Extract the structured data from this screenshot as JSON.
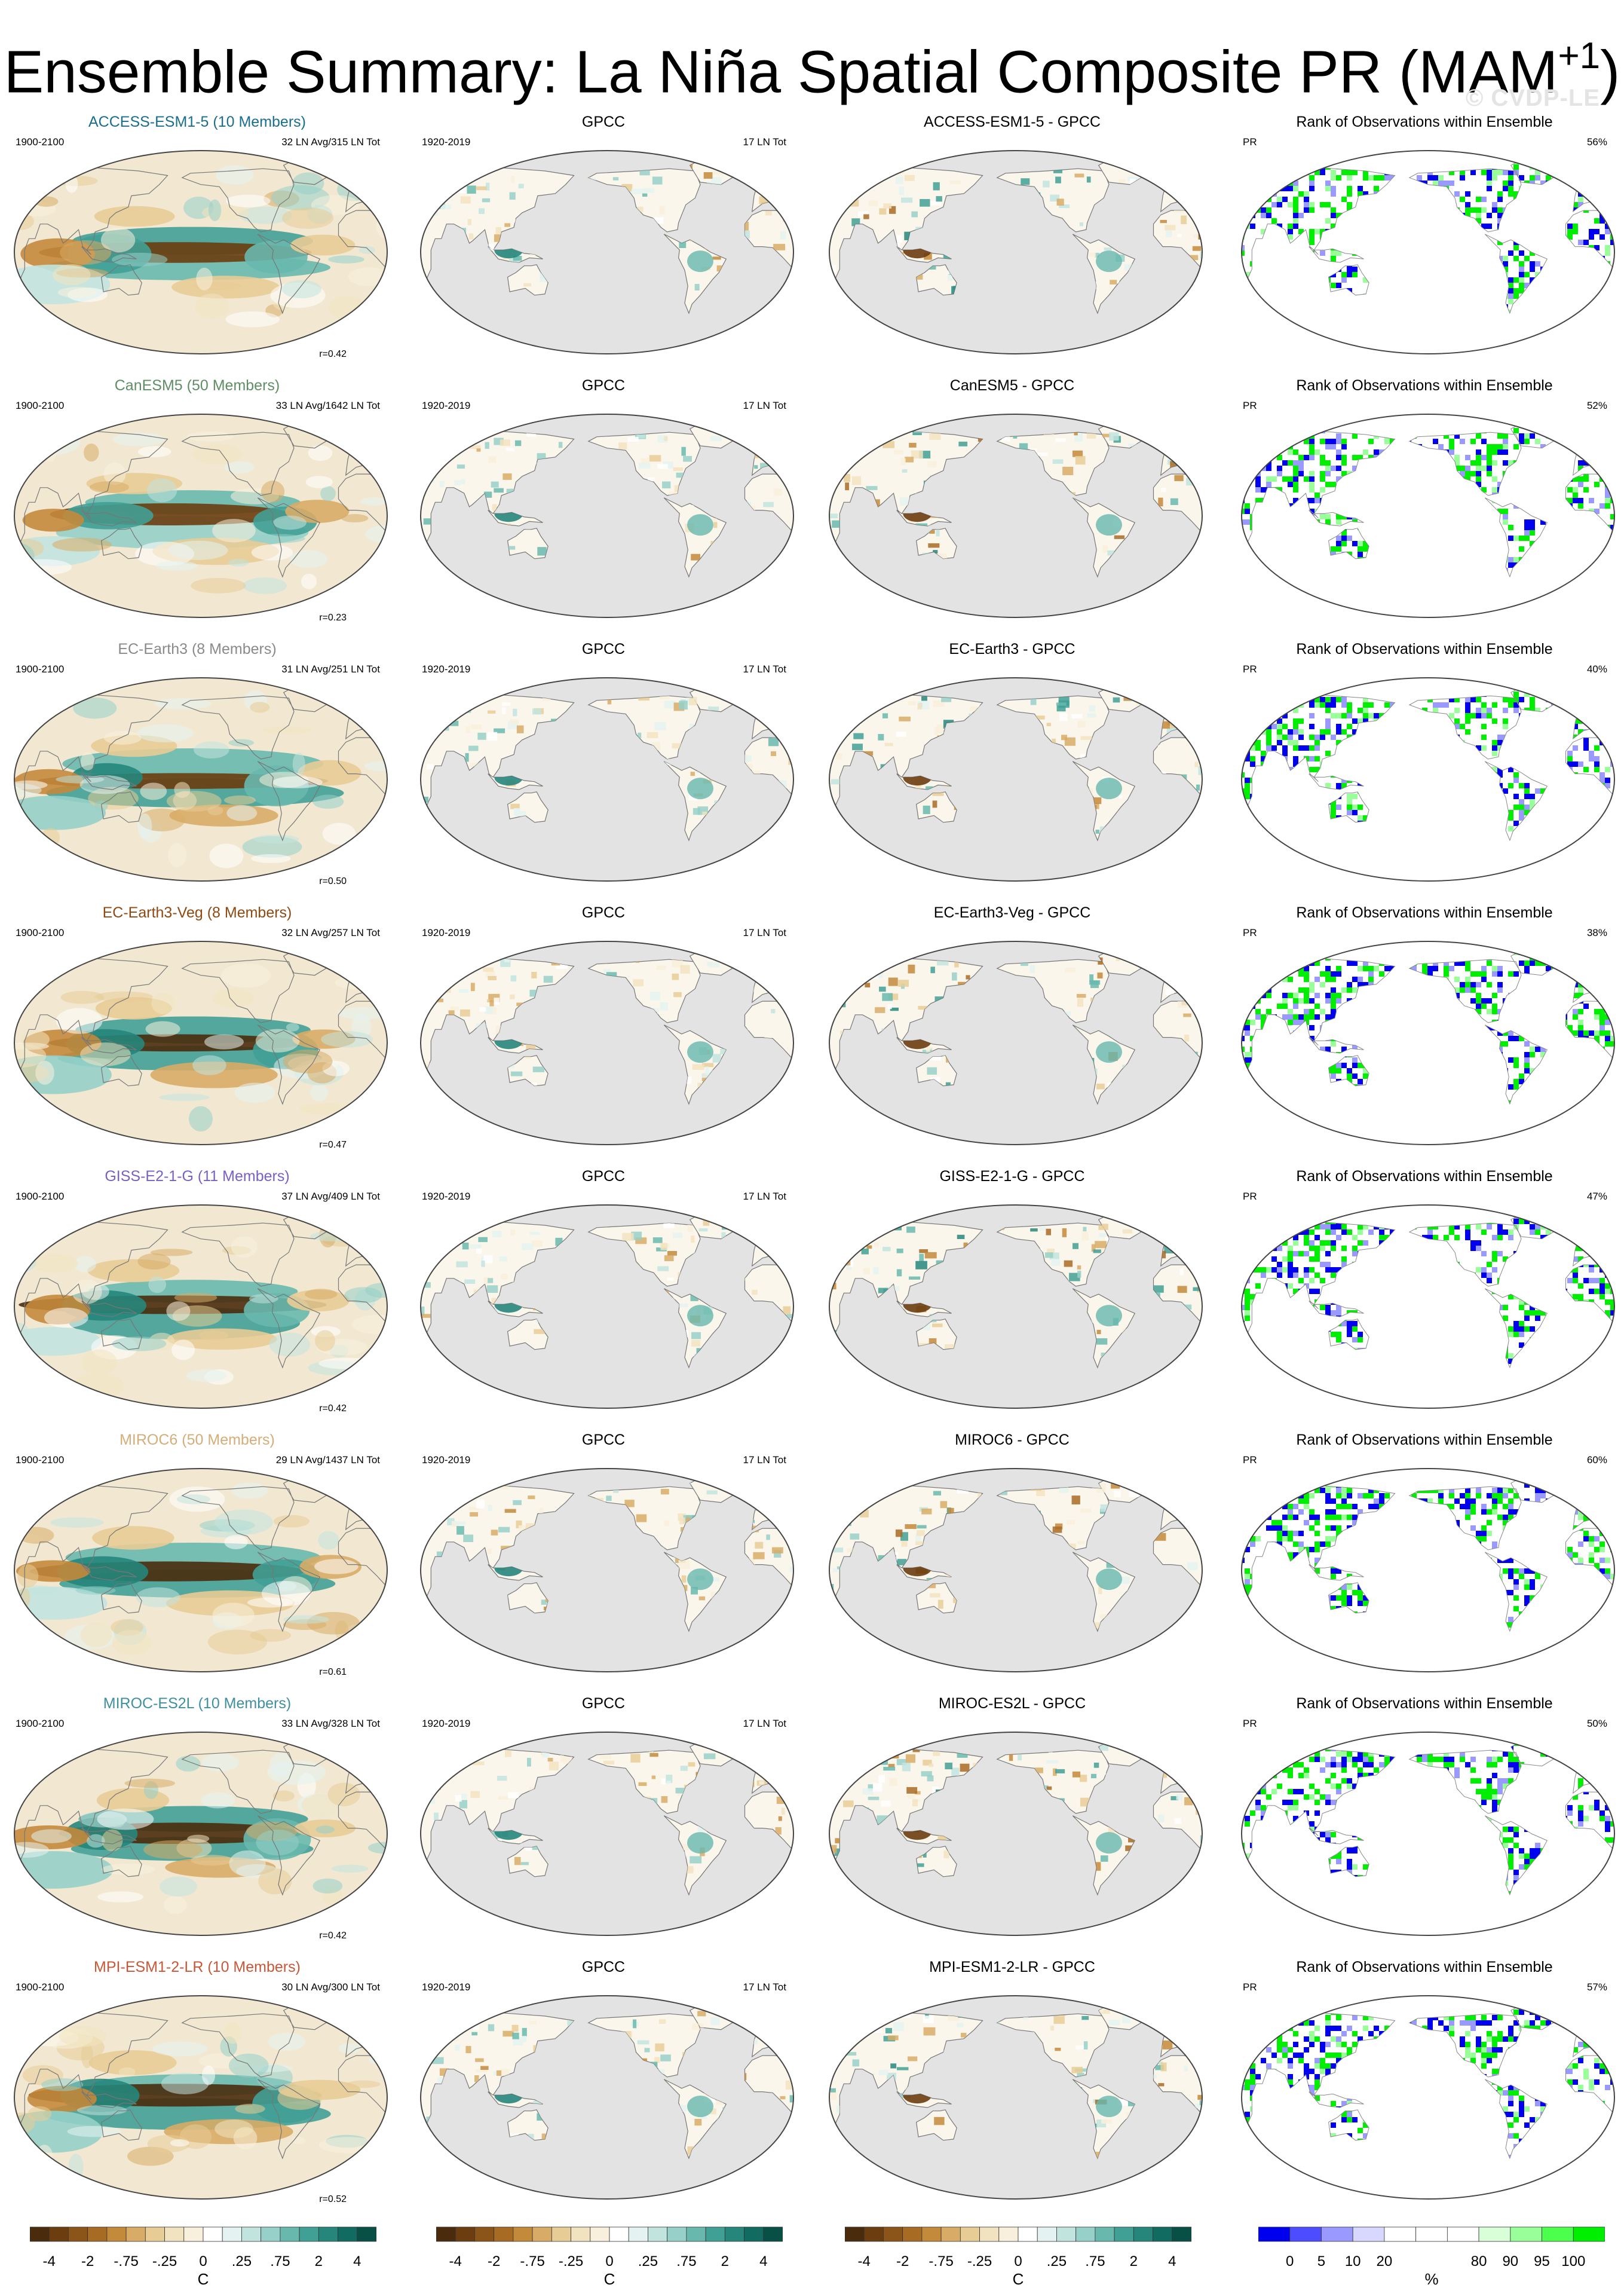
{
  "title": {
    "main": "Ensemble Summary: La Niña Spatial Composite PR (MAM",
    "sup": "+1",
    "close": ")"
  },
  "watermark": "© CVDP-LE",
  "colors": {
    "brown_dark": "#6b3d0f",
    "brown_mid": "#b8782e",
    "tan": "#e2c58f",
    "sand": "#f2e8d2",
    "white": "#ffffff",
    "pale_teal": "#d6ece9",
    "teal_mid": "#4fa9a0",
    "teal_dark": "#0f6258",
    "land_gray": "#e3e3e3",
    "rank_blue": "#0000ee",
    "rank_green": "#00ee00"
  },
  "rows": [
    {
      "model": "ACCESS-ESM1-5 (10 Members)",
      "model_color": "#1a6e8e",
      "diff_title": "ACCESS-ESM1-5 - GPCC",
      "stats": "32 LN Avg/315 LN Tot",
      "r": "r=0.42",
      "rank_pct": "56%"
    },
    {
      "model": "CanESM5 (50 Members)",
      "model_color": "#5f8e66",
      "diff_title": "CanESM5 - GPCC",
      "stats": "33 LN Avg/1642 LN Tot",
      "r": "r=0.23",
      "rank_pct": "52%"
    },
    {
      "model": "EC-Earth3 (8 Members)",
      "model_color": "#8a8a8a",
      "diff_title": "EC-Earth3 - GPCC",
      "stats": "31 LN Avg/251 LN Tot",
      "r": "r=0.50",
      "rank_pct": "40%"
    },
    {
      "model": "EC-Earth3-Veg (8 Members)",
      "model_color": "#8e4a12",
      "diff_title": "EC-Earth3-Veg - GPCC",
      "stats": "32 LN Avg/257 LN Tot",
      "r": "r=0.47",
      "rank_pct": "38%"
    },
    {
      "model": "GISS-E2-1-G (11 Members)",
      "model_color": "#7a5fc4",
      "diff_title": "GISS-E2-1-G - GPCC",
      "stats": "37 LN Avg/409 LN Tot",
      "r": "r=0.42",
      "rank_pct": "47%"
    },
    {
      "model": "MIROC6 (50 Members)",
      "model_color": "#d4ad78",
      "diff_title": "MIROC6 - GPCC",
      "stats": "29 LN Avg/1437 LN Tot",
      "r": "r=0.61",
      "rank_pct": "60%"
    },
    {
      "model": "MIROC-ES2L (10 Members)",
      "model_color": "#3f8fa0",
      "diff_title": "MIROC-ES2L - GPCC",
      "stats": "33 LN Avg/328 LN Tot",
      "r": "r=0.42",
      "rank_pct": "50%"
    },
    {
      "model": "MPI-ESM1-2-LR (10 Members)",
      "model_color": "#c8573a",
      "diff_title": "MPI-ESM1-2-LR - GPCC",
      "stats": "30 LN Avg/300 LN Tot",
      "r": "r=0.52",
      "rank_pct": "57%"
    }
  ],
  "common": {
    "model_period": "1900-2100",
    "obs_title": "GPCC",
    "obs_period": "1920-2019",
    "obs_stats": "17 LN Tot",
    "rank_title": "Rank of Observations within Ensemble",
    "rank_var": "PR"
  },
  "colorbars": {
    "diverging": {
      "ticks": [
        "-4",
        "-2",
        "-.75",
        "-.25",
        "0",
        ".25",
        ".75",
        "2",
        "4"
      ],
      "unit": "C",
      "colors": [
        "#4a2c0c",
        "#6b3d0f",
        "#8b5418",
        "#a86b24",
        "#c48a3c",
        "#d8ac66",
        "#e8cc96",
        "#f2e3c0",
        "#f8f0dc",
        "#ffffff",
        "#e4f3f1",
        "#c2e4df",
        "#96d0c8",
        "#68b8ae",
        "#41a096",
        "#26867c",
        "#126b61",
        "#085046"
      ]
    },
    "rank": {
      "ticks": [
        "0",
        "5",
        "10",
        "20",
        "80",
        "90",
        "95",
        "100"
      ],
      "unit": "%",
      "colors": [
        "#0000ee",
        "#4d4dff",
        "#9999ff",
        "#d8d8ff",
        "#ffffff",
        "#ffffff",
        "#ffffff",
        "#d8ffd8",
        "#99ff99",
        "#4dff4d",
        "#00ee00"
      ]
    }
  }
}
